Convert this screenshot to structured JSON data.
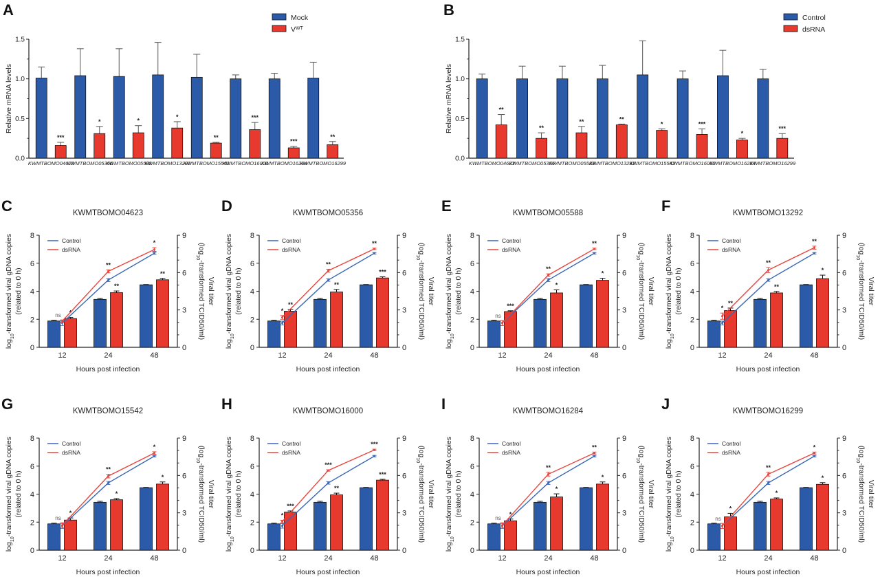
{
  "colors": {
    "blue": "#2b5aa8",
    "red": "#e8392f",
    "line_blue": "#3a67b8",
    "line_red": "#e8453c"
  },
  "chart_data": [
    {
      "panel": "A",
      "type": "bar",
      "ylabel": "Relative mRNA levels",
      "xlabel": "",
      "ylim": [
        0,
        1.5
      ],
      "yticks": [
        "0.0",
        "0.5",
        "1.0",
        "1.5"
      ],
      "categories": [
        "KWMTBOMO04623",
        "KWMTBOMO05356",
        "KWMTBOMO05588",
        "KWMTBOMO13292",
        "KWMTBOMO15542",
        "KWMTBOMO16000",
        "KWMTBOMO16284",
        "KWMTBOMO16299"
      ],
      "series": [
        {
          "name": "Mock",
          "values": [
            1.01,
            1.04,
            1.03,
            1.05,
            1.02,
            1.0,
            1.0,
            1.01
          ],
          "errors": [
            0.14,
            0.34,
            0.35,
            0.41,
            0.29,
            0.05,
            0.07,
            0.2
          ]
        },
        {
          "name": "V",
          "name_sup": "WT",
          "values": [
            0.16,
            0.31,
            0.32,
            0.38,
            0.19,
            0.36,
            0.13,
            0.17
          ],
          "errors": [
            0.04,
            0.09,
            0.09,
            0.08,
            0.01,
            0.09,
            0.02,
            0.04
          ]
        }
      ],
      "significance": [
        "***",
        "*",
        "*",
        "*",
        "**",
        "***",
        "***",
        "**"
      ],
      "legend": "top-right"
    },
    {
      "panel": "B",
      "type": "bar",
      "ylabel": "Relative mRNA levels",
      "xlabel": "",
      "ylim": [
        0,
        1.5
      ],
      "yticks": [
        "0.0",
        "0.5",
        "1.0",
        "1.5"
      ],
      "categories": [
        "KWMTBOMO04623",
        "KWMTBOMO05356",
        "KWMTBOMO05588",
        "KWMTBOMO13292",
        "KWMTBOMO15542",
        "KWMTBOMO16000",
        "KWMTBOMO16284",
        "KWMTBOMO16299"
      ],
      "series": [
        {
          "name": "Control",
          "values": [
            1.0,
            1.0,
            1.0,
            1.0,
            1.05,
            1.0,
            1.04,
            1.0
          ],
          "errors": [
            0.06,
            0.16,
            0.16,
            0.17,
            0.43,
            0.1,
            0.32,
            0.12
          ]
        },
        {
          "name": "dsRNA",
          "values": [
            0.42,
            0.25,
            0.32,
            0.42,
            0.35,
            0.3,
            0.23,
            0.25
          ],
          "errors": [
            0.13,
            0.07,
            0.08,
            0.01,
            0.02,
            0.07,
            0.02,
            0.06
          ]
        }
      ],
      "significance": [
        "**",
        "**",
        "**",
        "**",
        "*",
        "***",
        "*",
        "***"
      ],
      "legend": "top-right"
    },
    {
      "panel": "C",
      "type": "bar+line",
      "title": "KWMTBOMO04623",
      "categories": [
        "12",
        "24",
        "48"
      ],
      "bars": {
        "Control": [
          1.88,
          3.42,
          4.46
        ],
        "dsRNA": [
          2.05,
          3.9,
          4.82
        ],
        "Control_err": [
          0.05,
          0.07,
          0.02
        ],
        "dsRNA_err": [
          0.08,
          0.12,
          0.1
        ]
      },
      "lines": {
        "Control": [
          1.95,
          5.4,
          7.55
        ],
        "dsRNA": [
          2.1,
          6.1,
          7.85
        ],
        "Control_err": [
          0.2,
          0.12,
          0.08
        ],
        "dsRNA_err": [
          0.1,
          0.12,
          0.15
        ]
      },
      "bar_sig": [
        "*",
        "**",
        "**"
      ],
      "line_sig": [
        "ns",
        "**",
        "*"
      ]
    },
    {
      "panel": "D",
      "type": "bar+line",
      "title": "KWMTBOMO05356",
      "categories": [
        "12",
        "24",
        "48"
      ],
      "bars": {
        "Control": [
          1.88,
          3.42,
          4.46
        ],
        "dsRNA": [
          2.58,
          3.95,
          4.95
        ],
        "Control_err": [
          0.05,
          0.07,
          0.02
        ],
        "dsRNA_err": [
          0.12,
          0.18,
          0.08
        ]
      },
      "lines": {
        "Control": [
          1.95,
          5.4,
          7.55
        ],
        "dsRNA": [
          2.4,
          6.15,
          7.9
        ],
        "Control_err": [
          0.15,
          0.1,
          0.06
        ],
        "dsRNA_err": [
          0.15,
          0.12,
          0.06
        ]
      },
      "bar_sig": [
        "**",
        "**",
        "***"
      ],
      "line_sig": [
        "*",
        "**",
        "**"
      ]
    },
    {
      "panel": "E",
      "type": "bar+line",
      "title": "KWMTBOMO05588",
      "categories": [
        "12",
        "24",
        "48"
      ],
      "bars": {
        "Control": [
          1.88,
          3.42,
          4.46
        ],
        "dsRNA": [
          2.55,
          3.88,
          4.78
        ],
        "Control_err": [
          0.05,
          0.07,
          0.02
        ],
        "dsRNA_err": [
          0.06,
          0.22,
          0.15
        ]
      },
      "lines": {
        "Control": [
          1.95,
          5.4,
          7.55
        ],
        "dsRNA": [
          1.95,
          5.8,
          7.9
        ],
        "Control_err": [
          0.2,
          0.12,
          0.06
        ],
        "dsRNA_err": [
          0.2,
          0.1,
          0.06
        ]
      },
      "bar_sig": [
        "***",
        "*",
        "*"
      ],
      "line_sig": [
        "ns",
        "**",
        "**"
      ]
    },
    {
      "panel": "F",
      "type": "bar+line",
      "title": "KWMTBOMO13292",
      "categories": [
        "12",
        "24",
        "48"
      ],
      "bars": {
        "Control": [
          1.88,
          3.42,
          4.46
        ],
        "dsRNA": [
          2.62,
          3.88,
          4.9
        ],
        "Control_err": [
          0.05,
          0.07,
          0.02
        ],
        "dsRNA_err": [
          0.18,
          0.1,
          0.25
        ]
      },
      "lines": {
        "Control": [
          1.95,
          5.4,
          7.55
        ],
        "dsRNA": [
          2.5,
          6.2,
          8.0
        ],
        "Control_err": [
          0.15,
          0.1,
          0.06
        ],
        "dsRNA_err": [
          0.25,
          0.2,
          0.12
        ]
      },
      "bar_sig": [
        "**",
        "**",
        "*"
      ],
      "line_sig": [
        "*",
        "**",
        "**"
      ]
    },
    {
      "panel": "G",
      "type": "bar+line",
      "title": "KWMTBOMO15542",
      "categories": [
        "12",
        "24",
        "48"
      ],
      "bars": {
        "Control": [
          1.88,
          3.42,
          4.46
        ],
        "dsRNA": [
          2.15,
          3.6,
          4.72
        ],
        "Control_err": [
          0.05,
          0.07,
          0.02
        ],
        "dsRNA_err": [
          0.15,
          0.08,
          0.15
        ]
      },
      "lines": {
        "Control": [
          1.95,
          5.4,
          7.55
        ],
        "dsRNA": [
          2.0,
          5.95,
          7.8
        ],
        "Control_err": [
          0.2,
          0.12,
          0.06
        ],
        "dsRNA_err": [
          0.2,
          0.15,
          0.1
        ]
      },
      "bar_sig": [
        "*",
        "*",
        "*"
      ],
      "line_sig": [
        "ns",
        "**",
        "*"
      ]
    },
    {
      "panel": "H",
      "type": "bar+line",
      "title": "KWMTBOMO16000",
      "categories": [
        "12",
        "24",
        "48"
      ],
      "bars": {
        "Control": [
          1.88,
          3.42,
          4.46
        ],
        "dsRNA": [
          2.72,
          3.95,
          5.0
        ],
        "Control_err": [
          0.05,
          0.07,
          0.02
        ],
        "dsRNA_err": [
          0.08,
          0.12,
          0.06
        ]
      },
      "lines": {
        "Control": [
          1.95,
          5.4,
          7.55
        ],
        "dsRNA": [
          2.3,
          6.4,
          8.05
        ],
        "Control_err": [
          0.18,
          0.1,
          0.06
        ],
        "dsRNA_err": [
          0.1,
          0.06,
          0.06
        ]
      },
      "bar_sig": [
        "***",
        "**",
        "***"
      ],
      "line_sig": [
        "*",
        "***",
        "***"
      ]
    },
    {
      "panel": "I",
      "type": "bar+line",
      "title": "KWMTBOMO16284",
      "categories": [
        "12",
        "24",
        "48"
      ],
      "bars": {
        "Control": [
          1.88,
          3.42,
          4.46
        ],
        "dsRNA": [
          2.1,
          3.8,
          4.72
        ],
        "Control_err": [
          0.05,
          0.07,
          0.02
        ],
        "dsRNA_err": [
          0.12,
          0.22,
          0.15
        ]
      },
      "lines": {
        "Control": [
          1.95,
          5.4,
          7.55
        ],
        "dsRNA": [
          2.0,
          6.1,
          7.8
        ],
        "Control_err": [
          0.2,
          0.12,
          0.06
        ],
        "dsRNA_err": [
          0.2,
          0.15,
          0.08
        ]
      },
      "bar_sig": [
        "*",
        "*",
        "*"
      ],
      "line_sig": [
        "ns",
        "**",
        "**"
      ]
    },
    {
      "panel": "J",
      "type": "bar+line",
      "title": "KWMTBOMO16299",
      "categories": [
        "12",
        "24",
        "48"
      ],
      "bars": {
        "Control": [
          1.88,
          3.42,
          4.46
        ],
        "dsRNA": [
          2.38,
          3.65,
          4.7
        ],
        "Control_err": [
          0.05,
          0.07,
          0.02
        ],
        "dsRNA_err": [
          0.25,
          0.08,
          0.12
        ]
      },
      "lines": {
        "Control": [
          1.95,
          5.4,
          7.55
        ],
        "dsRNA": [
          1.95,
          6.1,
          7.8
        ],
        "Control_err": [
          0.2,
          0.12,
          0.06
        ],
        "dsRNA_err": [
          0.2,
          0.15,
          0.08
        ]
      },
      "bar_sig": [
        "*",
        "*",
        "*"
      ],
      "line_sig": [
        "ns",
        "**",
        "*"
      ]
    }
  ],
  "shared": {
    "growth_left_ylim": [
      0,
      8
    ],
    "growth_left_ticks": [
      "0",
      "2",
      "4",
      "6",
      "8"
    ],
    "growth_right_ylim": [
      0,
      9
    ],
    "growth_right_ticks": [
      "0",
      "3",
      "6",
      "9"
    ],
    "growth_xlabel": "Hours post infection",
    "growth_left_label_main": "log",
    "growth_left_label_sub": "10",
    "growth_left_label_rest": "-transformed viral gDNA copies",
    "growth_left_label_line2": "(related to 0 h)",
    "growth_right_label_line1": "Viral titer",
    "growth_right_label_main": "(log",
    "growth_right_label_sub": "10",
    "growth_right_label_rest": "-transformed TCID50/ml)",
    "line_legend": [
      "Control",
      "dsRNA"
    ]
  }
}
